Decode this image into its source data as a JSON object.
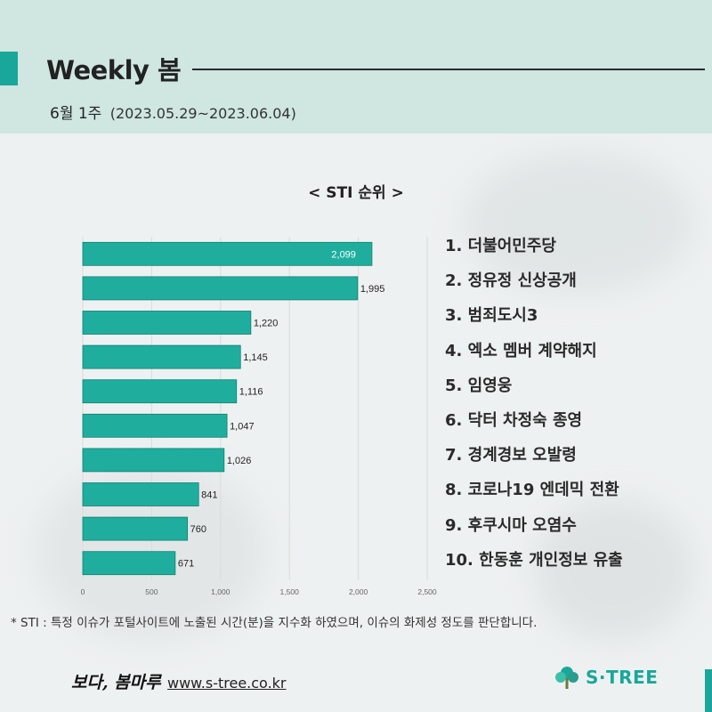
{
  "header": {
    "title": "Weekly 봄",
    "week_label": "6월 1주",
    "date_range": "(2023.05.29~2023.06.04)"
  },
  "chart_data": {
    "type": "bar",
    "orientation": "horizontal",
    "title": "< STI 순위 >",
    "categories": [
      "1",
      "2",
      "3",
      "4",
      "5",
      "6",
      "7",
      "8",
      "9",
      "10"
    ],
    "values": [
      2099,
      1995,
      1220,
      1145,
      1116,
      1047,
      1026,
      841,
      760,
      671
    ],
    "value_labels": [
      "2,099",
      "1,995",
      "1,220",
      "1,145",
      "1,116",
      "1,047",
      "1,026",
      "841",
      "760",
      "671"
    ],
    "xlim": [
      0,
      2500
    ],
    "x_ticks": [
      0,
      500,
      1000,
      1500,
      2000,
      2500
    ],
    "x_tick_labels": [
      "0",
      "500",
      "1,000",
      "1,500",
      "2,000",
      "2,500"
    ],
    "bar_color": "#1fae9e",
    "grid": true
  },
  "ranking": [
    "1. 더불어민주당",
    "2. 정유정 신상공개",
    "3. 범죄도시3",
    "4. 엑소 멤버 계약해지",
    "5. 임영웅",
    "6. 닥터 차정숙 종영",
    "7. 경계경보 오발령",
    "8. 코로나19 엔데믹 전환",
    "9. 후쿠시마 오염수",
    "10. 한동훈 개인정보 유출"
  ],
  "footnote": "* STI : 특정 이슈가 포털사이트에 노출된 시간(분)을 지수화 하였으며, 이슈의 화제성 정도를 판단합니다.",
  "footer": {
    "brand_logo": "보다, 봄마루",
    "website": "www.s-tree.co.kr",
    "company": "S·TREE",
    "accent_color": "#1aa79b"
  }
}
